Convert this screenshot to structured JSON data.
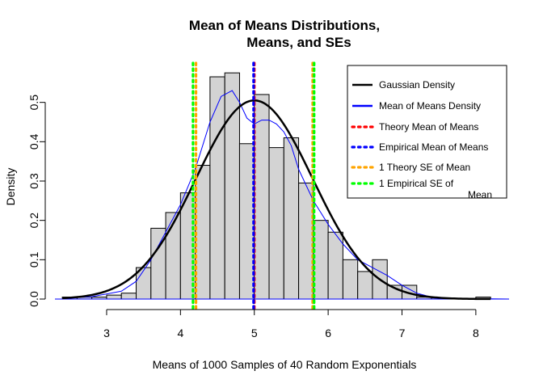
{
  "chart_data": {
    "type": "bar",
    "title": [
      "Mean of Means Distributions,",
      "Means, and SEs"
    ],
    "xlabel": "Means of 1000 Samples of 40 Random Exponentials",
    "ylabel": "Density",
    "xlim": [
      2.3,
      8.45
    ],
    "ylim": [
      0,
      0.6
    ],
    "x_ticks": [
      3,
      4,
      5,
      6,
      7,
      8
    ],
    "y_ticks": [
      0.0,
      0.1,
      0.2,
      0.3,
      0.4,
      0.5
    ],
    "y_tick_labels": [
      "0.0",
      "0.1",
      "0.2",
      "0.3",
      "0.4",
      "0.5"
    ],
    "histogram": {
      "bin_width": 0.2,
      "bins": [
        {
          "x0": 2.4,
          "x1": 2.6,
          "density": 0.005
        },
        {
          "x0": 2.6,
          "x1": 2.8,
          "density": 0.005
        },
        {
          "x0": 2.8,
          "x1": 3.0,
          "density": 0.005
        },
        {
          "x0": 3.0,
          "x1": 3.2,
          "density": 0.01
        },
        {
          "x0": 3.2,
          "x1": 3.4,
          "density": 0.015
        },
        {
          "x0": 3.4,
          "x1": 3.6,
          "density": 0.08
        },
        {
          "x0": 3.6,
          "x1": 3.8,
          "density": 0.18
        },
        {
          "x0": 3.8,
          "x1": 4.0,
          "density": 0.22
        },
        {
          "x0": 4.0,
          "x1": 4.2,
          "density": 0.27
        },
        {
          "x0": 4.2,
          "x1": 4.4,
          "density": 0.34
        },
        {
          "x0": 4.4,
          "x1": 4.6,
          "density": 0.565
        },
        {
          "x0": 4.6,
          "x1": 4.8,
          "density": 0.575
        },
        {
          "x0": 4.8,
          "x1": 5.0,
          "density": 0.395
        },
        {
          "x0": 5.0,
          "x1": 5.2,
          "density": 0.52
        },
        {
          "x0": 5.2,
          "x1": 5.4,
          "density": 0.385
        },
        {
          "x0": 5.4,
          "x1": 5.6,
          "density": 0.41
        },
        {
          "x0": 5.6,
          "x1": 5.8,
          "density": 0.295
        },
        {
          "x0": 5.8,
          "x1": 6.0,
          "density": 0.2
        },
        {
          "x0": 6.0,
          "x1": 6.2,
          "density": 0.17
        },
        {
          "x0": 6.2,
          "x1": 6.4,
          "density": 0.1
        },
        {
          "x0": 6.4,
          "x1": 6.6,
          "density": 0.07
        },
        {
          "x0": 6.6,
          "x1": 6.8,
          "density": 0.1
        },
        {
          "x0": 6.8,
          "x1": 7.0,
          "density": 0.035
        },
        {
          "x0": 7.0,
          "x1": 7.2,
          "density": 0.035
        },
        {
          "x0": 7.2,
          "x1": 7.4,
          "density": 0.005
        },
        {
          "x0": 7.4,
          "x1": 7.6,
          "density": 0.003
        },
        {
          "x0": 7.6,
          "x1": 7.8,
          "density": 0.002
        },
        {
          "x0": 7.8,
          "x1": 8.0,
          "density": 0.002
        },
        {
          "x0": 8.0,
          "x1": 8.2,
          "density": 0.005
        }
      ],
      "fill": "#d3d3d3",
      "stroke": "#000000"
    },
    "gaussian_density": {
      "name": "Gaussian Density",
      "mean": 5.0,
      "sd": 0.79,
      "x_range": [
        2.4,
        8.2
      ],
      "color": "#000000"
    },
    "mean_of_means_density": {
      "name": "Mean of Means Density",
      "color": "#0000ff",
      "x": [
        2.4,
        2.8,
        3.2,
        3.4,
        3.6,
        3.8,
        4.0,
        4.2,
        4.4,
        4.55,
        4.7,
        4.8,
        4.9,
        5.0,
        5.1,
        5.2,
        5.3,
        5.4,
        5.5,
        5.6,
        5.8,
        6.0,
        6.2,
        6.4,
        6.6,
        6.8,
        7.0,
        7.2,
        7.4,
        7.6,
        8.0,
        8.45
      ],
      "y": [
        0.002,
        0.006,
        0.02,
        0.045,
        0.1,
        0.17,
        0.24,
        0.33,
        0.45,
        0.515,
        0.53,
        0.5,
        0.46,
        0.445,
        0.455,
        0.455,
        0.445,
        0.425,
        0.39,
        0.33,
        0.25,
        0.19,
        0.14,
        0.1,
        0.08,
        0.06,
        0.035,
        0.015,
        0.005,
        0.002,
        0.001,
        0.0
      ]
    },
    "vertical_lines": [
      {
        "name": "Theory Mean of Means",
        "x": 5.0,
        "color": "#ff0000"
      },
      {
        "name": "Empirical Mean of Means",
        "x": 4.99,
        "color": "#0000ff"
      },
      {
        "name": "1 Theory SE of Mean",
        "x": 4.21,
        "color": "#ffa500"
      },
      {
        "name": "1 Theory SE of Mean",
        "x": 5.79,
        "color": "#ffa500"
      },
      {
        "name": "1 Empirical SE of Mean",
        "x": 4.17,
        "color": "#00ff00"
      },
      {
        "name": "1 Empirical SE of Mean",
        "x": 5.81,
        "color": "#00ff00"
      }
    ],
    "legend": {
      "position": "top-right",
      "entries": [
        {
          "label": "Gaussian Density",
          "color": "#000000",
          "style": "solid"
        },
        {
          "label": "Mean of Means Density",
          "color": "#0000ff",
          "style": "solid"
        },
        {
          "label": "Theory Mean of Means",
          "color": "#ff0000",
          "style": "dotted"
        },
        {
          "label": "Empirical Mean of Means",
          "color": "#0000ff",
          "style": "dotted"
        },
        {
          "label": "1 Theory SE of Mean",
          "color": "#ffa500",
          "style": "dotted"
        },
        {
          "label": "1 Empirical SE of",
          "label_line2": "Mean",
          "color": "#00ff00",
          "style": "dotted"
        }
      ]
    },
    "grid": false
  }
}
